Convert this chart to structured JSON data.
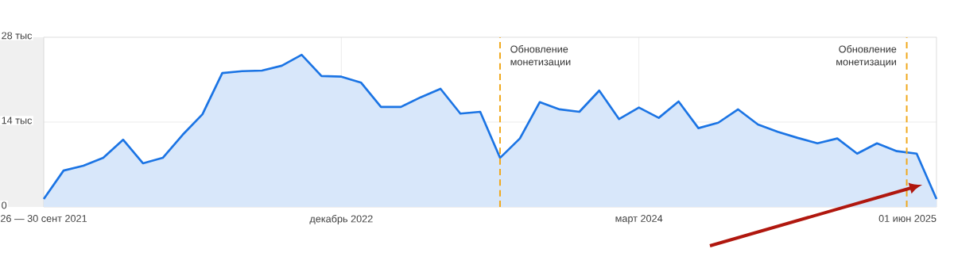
{
  "chart_data": {
    "type": "area",
    "x": [
      "2021-09",
      "2021-10",
      "2021-11",
      "2021-12",
      "2022-01",
      "2022-02",
      "2022-03",
      "2022-04",
      "2022-05",
      "2022-06",
      "2022-07",
      "2022-08",
      "2022-09",
      "2022-10",
      "2022-11",
      "2022-12",
      "2023-01",
      "2023-02",
      "2023-03",
      "2023-04",
      "2023-05",
      "2023-06",
      "2023-07",
      "2023-08",
      "2023-09",
      "2023-10",
      "2023-11",
      "2023-12",
      "2024-01",
      "2024-02",
      "2024-03",
      "2024-04",
      "2024-05",
      "2024-06",
      "2024-07",
      "2024-08",
      "2024-09",
      "2024-10",
      "2024-11",
      "2024-12",
      "2025-01",
      "2025-02",
      "2025-03",
      "2025-04",
      "2025-05",
      "2025-06"
    ],
    "values": [
      1.3,
      6.0,
      6.8,
      8.1,
      11.1,
      7.2,
      8.1,
      11.9,
      15.3,
      22.1,
      22.4,
      22.5,
      23.3,
      25.1,
      21.6,
      21.5,
      20.5,
      16.5,
      16.5,
      18.1,
      19.5,
      15.4,
      15.7,
      8.1,
      11.3,
      17.3,
      16.1,
      15.7,
      19.2,
      14.5,
      16.4,
      14.7,
      17.4,
      13.0,
      13.9,
      16.1,
      13.6,
      12.4,
      11.4,
      10.5,
      11.3,
      8.8,
      10.5,
      9.2,
      8.8,
      1.3
    ],
    "color": "#1b74e4",
    "xlim": [
      "2021-09",
      "2025-06"
    ],
    "xticks": [
      {
        "value": "2021-09",
        "label": "26 — 30 сент 2021"
      },
      {
        "value": "2022-12",
        "label": "декабрь 2022"
      },
      {
        "value": "2024-03",
        "label": "март 2024"
      },
      {
        "value": "2025-06",
        "label": "01 июн 2025"
      }
    ],
    "ylim": [
      0,
      28
    ],
    "yticks": [
      0,
      {
        "value": 14,
        "label": "14 тыс"
      },
      {
        "value": 28,
        "label": "28 тыс"
      }
    ],
    "grid": true,
    "ref_lines": [
      {
        "axis": "x",
        "value": "2023-08",
        "label": "Обновление монетизации",
        "color": "#f0a91e",
        "line_style": "dashed"
      },
      {
        "axis": "x",
        "value": "2025-04-16",
        "label": "Обновление монетизации",
        "color": "#f0a91e",
        "line_style": "dashed"
      }
    ]
  }
}
